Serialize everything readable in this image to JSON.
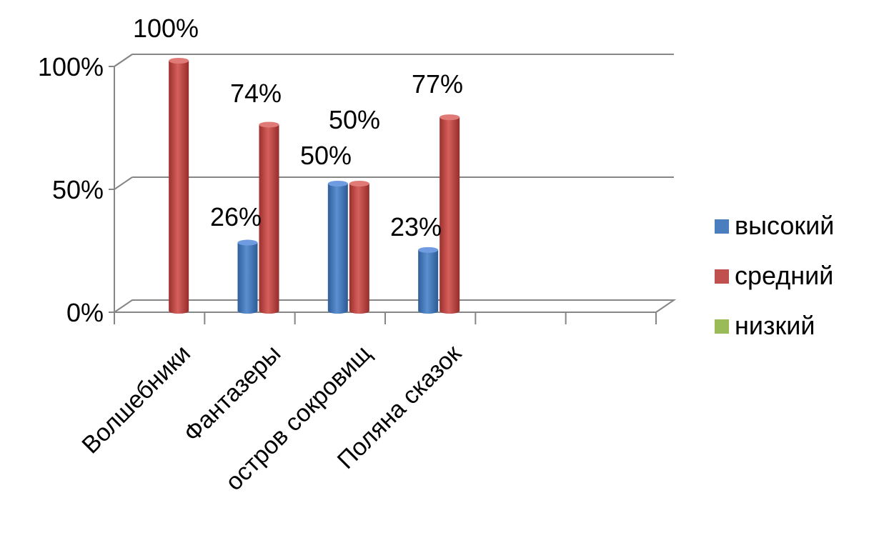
{
  "chart_data": {
    "type": "bar",
    "categories": [
      "Волшебники",
      "Фантазеры",
      "остров сокровищ",
      "Поляна сказок"
    ],
    "series": [
      {
        "name": "высокий",
        "values": [
          null,
          26,
          50,
          23
        ],
        "color": "#4a7ebf"
      },
      {
        "name": "средний",
        "values": [
          100,
          74,
          50,
          77
        ],
        "color": "#c0504d"
      },
      {
        "name": "низкий",
        "values": [
          null,
          null,
          null,
          null
        ],
        "color": "#9bbb59"
      }
    ],
    "data_labels": [
      {
        "category": "Волшебники",
        "series": "средний",
        "text": "100%"
      },
      {
        "category": "Фантазеры",
        "series": "средний",
        "text": "74%"
      },
      {
        "category": "Фантазеры",
        "series": "высокий",
        "text": "26%"
      },
      {
        "category": "остров сокровищ",
        "series": "средний",
        "text": "50%"
      },
      {
        "category": "остров сокровищ",
        "series": "высокий",
        "text": "50%"
      },
      {
        "category": "Поляна сказок",
        "series": "средний",
        "text": "77%"
      },
      {
        "category": "Поляна сказок",
        "series": "высокий",
        "text": "23%"
      }
    ],
    "y_ticks": [
      "0%",
      "50%",
      "100%"
    ],
    "ylim": [
      0,
      100
    ],
    "grid": true,
    "legend_position": "right",
    "category_slots": 6
  }
}
